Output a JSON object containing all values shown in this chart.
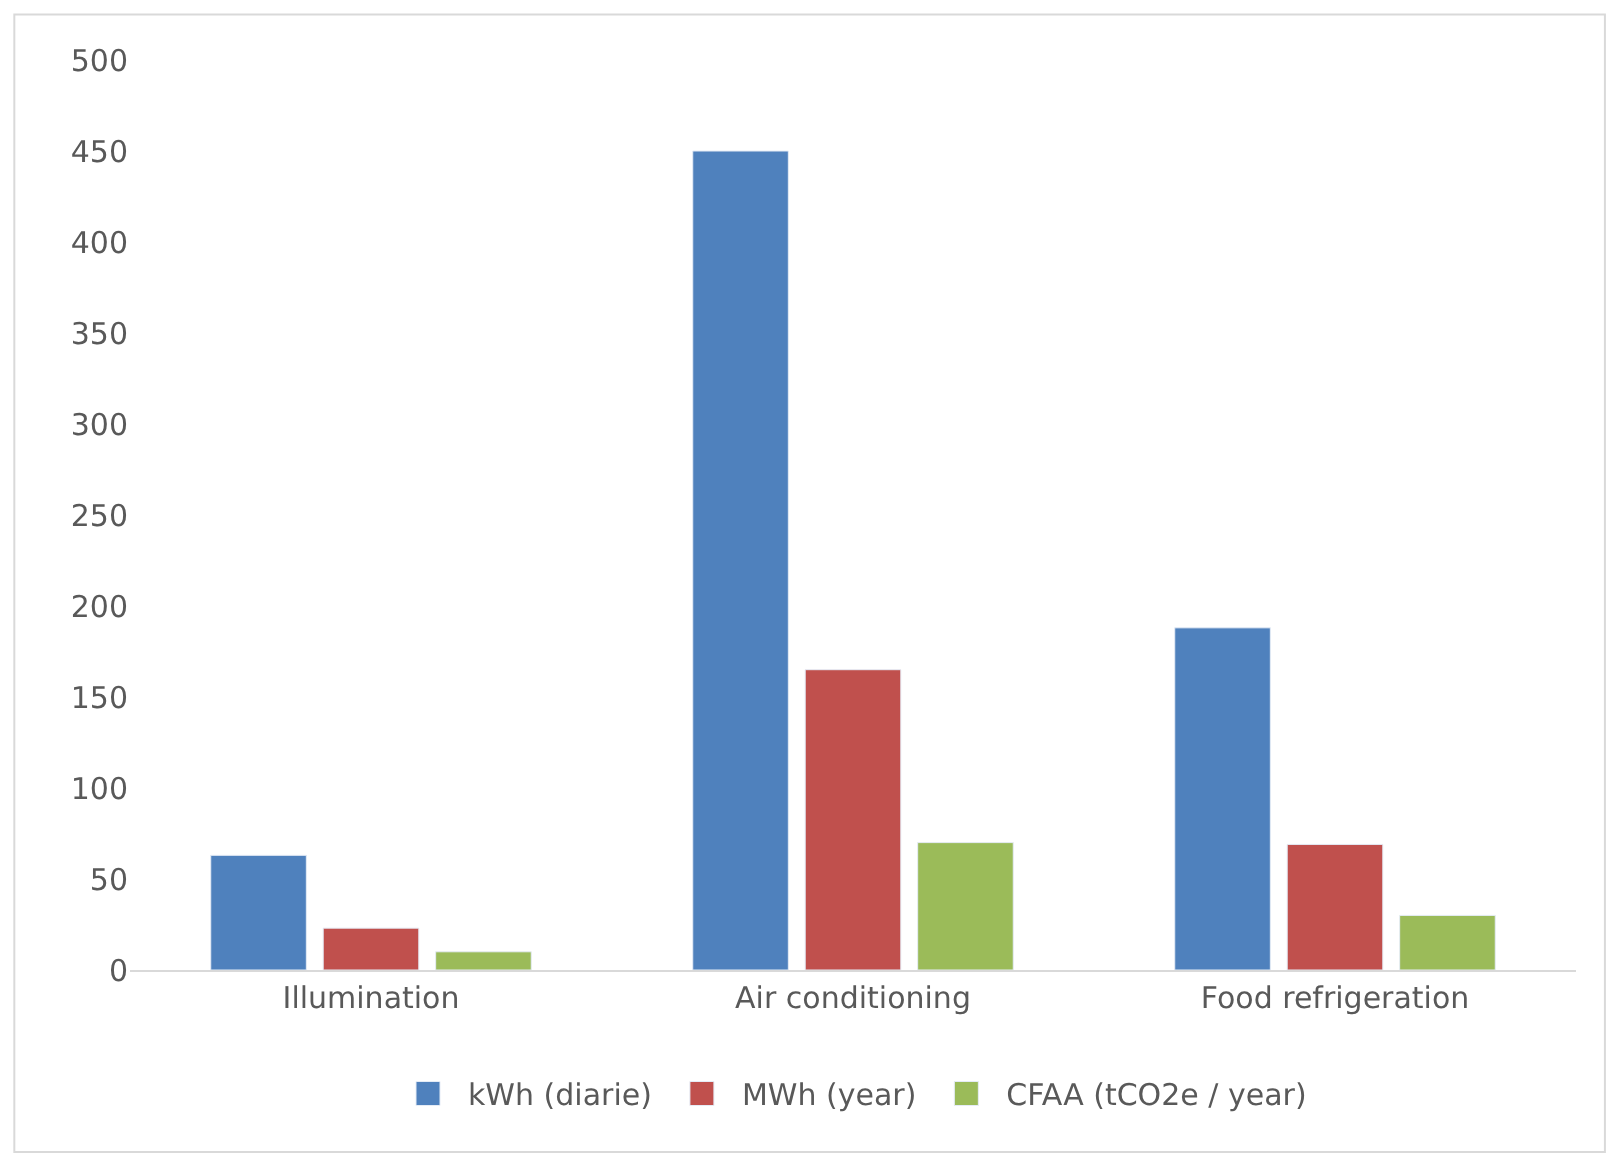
{
  "chart_data": {
    "type": "bar",
    "categories": [
      "Illumination",
      "Air conditioning",
      "Food refrigeration"
    ],
    "series": [
      {
        "name": "kWh (diarie)",
        "color": "#4f81bd",
        "values": [
          63,
          450,
          188
        ]
      },
      {
        "name": "MWh (year)",
        "color": "#c0504d",
        "values": [
          23,
          165,
          69
        ]
      },
      {
        "name": "CFAA (tCO2e / year)",
        "color": "#9bbb59",
        "values": [
          10,
          70,
          30
        ]
      }
    ],
    "ylim": [
      0,
      500
    ],
    "yticks": [
      0,
      50,
      100,
      150,
      200,
      250,
      300,
      350,
      400,
      450,
      500
    ],
    "grid": false,
    "legend": "bottom"
  }
}
